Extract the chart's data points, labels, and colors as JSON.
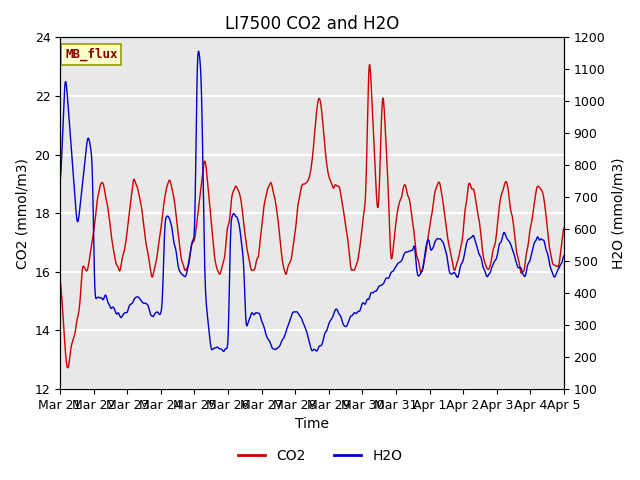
{
  "title": "LI7500 CO2 and H2O",
  "xlabel": "Time",
  "ylabel_left": "CO2 (mmol/m3)",
  "ylabel_right": "H2O (mmol/m3)",
  "ylim_left": [
    12,
    24
  ],
  "ylim_right": [
    100,
    1200
  ],
  "yticks_left": [
    12,
    14,
    16,
    18,
    20,
    22,
    24
  ],
  "yticks_right": [
    100,
    200,
    300,
    400,
    500,
    600,
    700,
    800,
    900,
    1000,
    1100,
    1200
  ],
  "xtick_labels": [
    "Mar 21",
    "Mar 22",
    "Mar 23",
    "Mar 24",
    "Mar 25",
    "Mar 26",
    "Mar 27",
    "Mar 28",
    "Mar 29",
    "Mar 30",
    "Mar 31",
    "Apr 1",
    "Apr 2",
    "Apr 3",
    "Apr 4",
    "Apr 5"
  ],
  "co2_color": "#cc0000",
  "h2o_color": "#0000cc",
  "legend_label_co2": "CO2",
  "legend_label_h2o": "H2O",
  "annotation_text": "MB_flux",
  "annotation_box_color": "#ffffcc",
  "annotation_box_edgecolor": "#999900",
  "annotation_text_color": "#880000",
  "background_color": "#e8e8e8",
  "grid_color": "white",
  "title_fontsize": 12,
  "axis_label_fontsize": 10,
  "tick_fontsize": 9
}
